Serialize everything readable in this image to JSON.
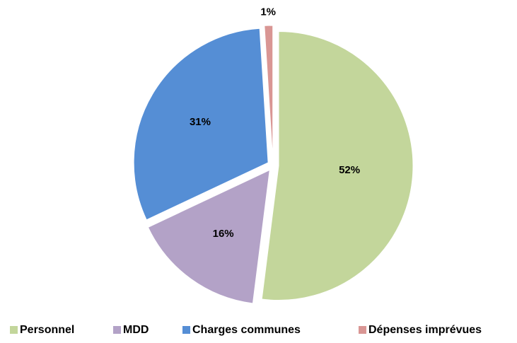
{
  "chart_data": {
    "type": "pie",
    "categories": [
      "Personnel",
      "MDD",
      "Charges communes",
      "Dépenses imprévues"
    ],
    "values": [
      52,
      16,
      31,
      1
    ],
    "value_labels": [
      "52%",
      "16%",
      "31%",
      "1%"
    ],
    "colors": [
      "#c3d69b",
      "#b3a2c7",
      "#558ed5",
      "#d99694"
    ],
    "legend": "bottom"
  }
}
